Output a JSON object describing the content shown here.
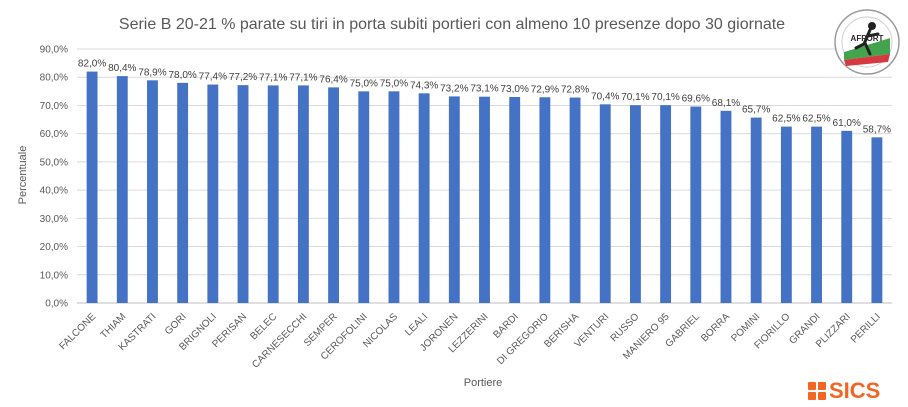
{
  "chart_data": {
    "type": "bar",
    "title": "Serie B 20-21 % parate su tiri in porta subiti portieri con almeno 10 presenze dopo 30 giornate",
    "xlabel": "Portiere",
    "ylabel": "Percentuale",
    "ylim": [
      0,
      90
    ],
    "yticks": [
      "0,0%",
      "10,0%",
      "20,0%",
      "30,0%",
      "40,0%",
      "50,0%",
      "60,0%",
      "70,0%",
      "80,0%",
      "90,0%"
    ],
    "categories": [
      "FALCONE",
      "THIAM",
      "KASTRATI",
      "GORI",
      "BRIGNOLI",
      "PERISAN",
      "BELEC",
      "CARNESECCHI",
      "SEMPER",
      "CEROFOLINI",
      "NICOLAS",
      "LEALI",
      "JORONEN",
      "LEZZERINI",
      "BARDI",
      "DI GREGORIO",
      "BERISHA",
      "VENTURI",
      "RUSSO",
      "MANIERO 95",
      "GABRIEL",
      "BORRA",
      "POMINI",
      "FIORILLO",
      "GRANDI",
      "PLIZZARI",
      "PERILLI"
    ],
    "values": [
      82.0,
      80.4,
      78.9,
      78.0,
      77.4,
      77.2,
      77.1,
      77.1,
      76.4,
      75.0,
      75.0,
      74.3,
      73.2,
      73.1,
      73.0,
      72.9,
      72.8,
      70.4,
      70.1,
      70.1,
      69.6,
      68.1,
      65.7,
      62.5,
      62.5,
      61.0,
      58.7
    ],
    "data_labels": [
      "82,0%",
      "80,4%",
      "78,9%",
      "78,0%",
      "77,4%",
      "77,2%",
      "77,1%",
      "77,1%",
      "76,4%",
      "75,0%",
      "75,0%",
      "74,3%",
      "73,2%",
      "73,1%",
      "73,0%",
      "72,9%",
      "72,8%",
      "70,4%",
      "70,1%",
      "70,1%",
      "69,6%",
      "68,1%",
      "65,7%",
      "62,5%",
      "62,5%",
      "61,0%",
      "58,7%"
    ],
    "bar_color": "#4472c4",
    "grid": true,
    "legend": "none"
  },
  "logos": {
    "badge_text": "AFPORT",
    "brand_text": "SICS",
    "brand_color": "#f26522"
  }
}
